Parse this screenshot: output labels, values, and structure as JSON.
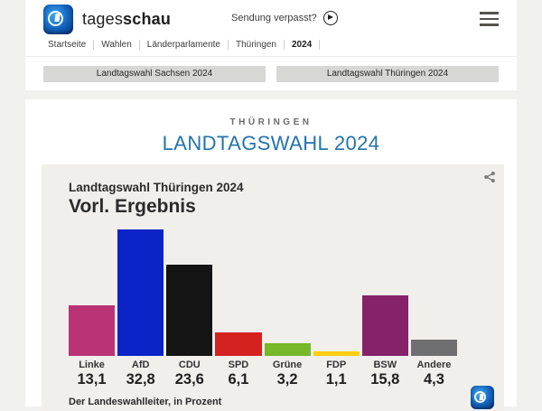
{
  "header": {
    "brand_light": "tages",
    "brand_bold": "schau",
    "sendung_verpasst": "Sendung verpasst?",
    "breadcrumb": [
      {
        "label": "Startseite",
        "current": false
      },
      {
        "label": "Wahlen",
        "current": false
      },
      {
        "label": "Länderparlamente",
        "current": false
      },
      {
        "label": "Thüringen",
        "current": false
      },
      {
        "label": "2024",
        "current": true
      }
    ]
  },
  "nav_buttons": [
    {
      "label": "Landtagswahl Sachsen 2024"
    },
    {
      "label": "Landtagswahl Thüringen 2024"
    }
  ],
  "page": {
    "eyebrow": "THÜRINGEN",
    "title": "LANDTAGSWAHL 2024"
  },
  "chart": {
    "title": "Landtagswahl Thüringen 2024",
    "subtitle": "Vorl. Ergebnis",
    "source": "Der Landeswahlleiter, in Prozent"
  },
  "chart_data": {
    "type": "bar",
    "title": "Landtagswahl Thüringen 2024 – Vorl. Ergebnis",
    "categories": [
      "Linke",
      "AfD",
      "CDU",
      "SPD",
      "Grüne",
      "FDP",
      "BSW",
      "Andere"
    ],
    "values": [
      13.1,
      32.8,
      23.6,
      6.1,
      3.2,
      1.1,
      15.8,
      4.3
    ],
    "value_labels": [
      "13,1",
      "32,8",
      "23,6",
      "6,1",
      "3,2",
      "1,1",
      "15,8",
      "4,3"
    ],
    "colors": [
      "#bb3377",
      "#0b24c8",
      "#141414",
      "#d52221",
      "#76b829",
      "#ffcd12",
      "#85226a",
      "#6f6f71"
    ],
    "unit": "Prozent",
    "ylim": [
      0,
      35
    ],
    "grid": false,
    "legend": "none"
  },
  "icons": {
    "brand_logo": "tagesschau-globe-logo",
    "play": "play-icon",
    "menu": "hamburger-menu-icon",
    "share": "share-icon",
    "card_logo": "tagesschau-globe-logo"
  },
  "colors": {
    "page_bg": "#f1f1f0",
    "panel_bg": "#ffffff",
    "card_bg": "#f0efec",
    "accent_blue": "#2373ae",
    "button_bg": "#d7d7d6"
  }
}
